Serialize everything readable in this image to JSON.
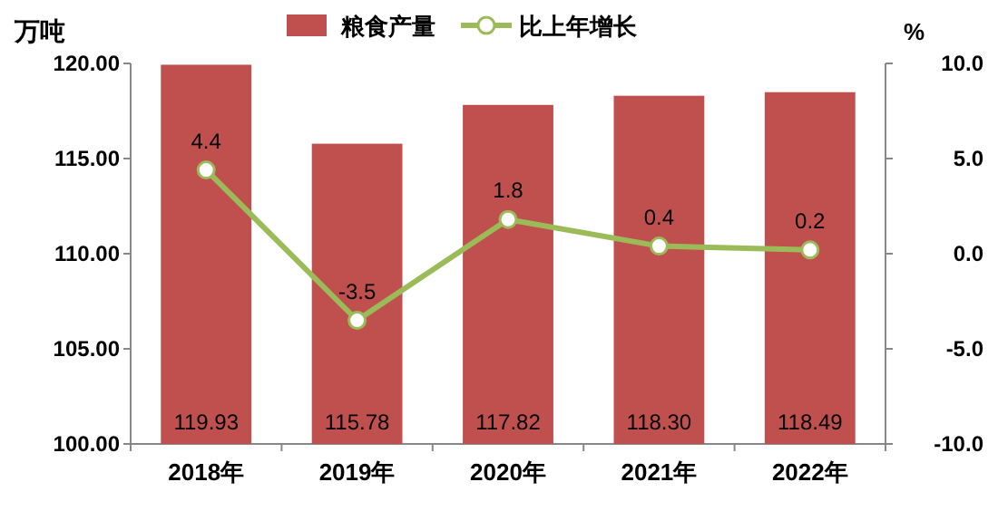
{
  "chart_data": {
    "type": "bar",
    "ylabel": "万吨",
    "y2label": "%",
    "categories": [
      "2018年",
      "2019年",
      "2020年",
      "2021年",
      "2022年"
    ],
    "series": [
      {
        "name": "粮食产量",
        "color": "#c0504d",
        "values": [
          119.93,
          115.78,
          117.82,
          118.3,
          118.49
        ],
        "value_labels": [
          "119.93",
          "115.78",
          "117.82",
          "118.30",
          "118.49"
        ]
      },
      {
        "name": "比上年增长",
        "type": "line",
        "axis": "y2",
        "color": "#9bbb59",
        "marker": "circle",
        "values": [
          4.4,
          -3.5,
          1.8,
          0.4,
          0.2
        ],
        "value_labels": [
          "4.4",
          "-3.5",
          "1.8",
          "0.4",
          "0.2"
        ]
      }
    ],
    "ylim": [
      100,
      120
    ],
    "yticks": [
      {
        "value": 100,
        "label": "100.00"
      },
      {
        "value": 105,
        "label": "105.00"
      },
      {
        "value": 110,
        "label": "110.00"
      },
      {
        "value": 115,
        "label": "115.00"
      },
      {
        "value": 120,
        "label": "120.00"
      }
    ],
    "y2lim": [
      -10,
      10
    ],
    "y2ticks": [
      {
        "value": -10,
        "label": "-10.0"
      },
      {
        "value": -5,
        "label": "-5.0"
      },
      {
        "value": 0,
        "label": "0.0"
      },
      {
        "value": 5,
        "label": "5.0"
      },
      {
        "value": 10,
        "label": "10.0"
      }
    ],
    "legend": "top"
  }
}
